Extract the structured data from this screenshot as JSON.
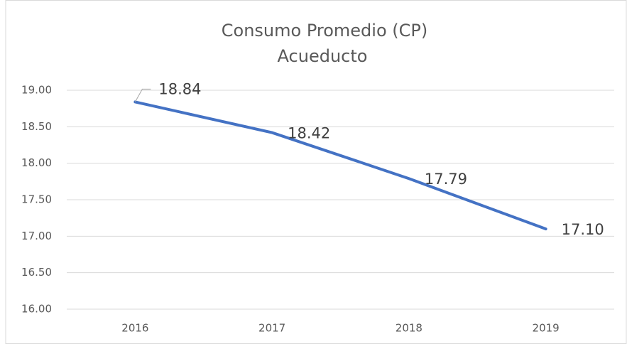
{
  "chart_data": {
    "type": "line",
    "title": "Consumo Promedio (CP)",
    "subtitle": "Acueducto",
    "categories": [
      "2016",
      "2017",
      "2018",
      "2019"
    ],
    "series": [
      {
        "name": "CP",
        "color": "#4472c4",
        "values": [
          18.84,
          18.42,
          17.79,
          17.1
        ],
        "value_labels": [
          "18.84",
          "18.42",
          "17.79",
          "17.10"
        ]
      }
    ],
    "ylim": [
      16,
      19
    ],
    "yticks": [
      {
        "value": 16,
        "label": "16.00"
      },
      {
        "value": 16.5,
        "label": "16.50"
      },
      {
        "value": 17,
        "label": "17.00"
      },
      {
        "value": 17.5,
        "label": "17.50"
      },
      {
        "value": 18,
        "label": "18.00"
      },
      {
        "value": 18.5,
        "label": "18.50"
      },
      {
        "value": 19,
        "label": "19.00"
      }
    ],
    "grid": true
  }
}
